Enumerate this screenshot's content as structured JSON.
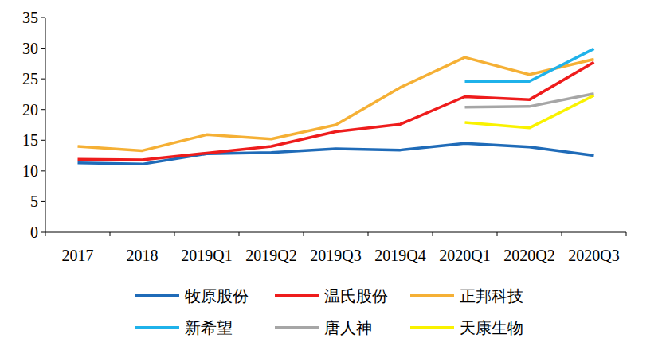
{
  "chart_data": {
    "type": "line",
    "categories": [
      "2017",
      "2018",
      "2019Q1",
      "2019Q2",
      "2019Q3",
      "2019Q4",
      "2020Q1",
      "2020Q2",
      "2020Q3"
    ],
    "series": [
      {
        "name": "牧原股份",
        "color": "#1f6bb8",
        "values": [
          11.3,
          11.1,
          12.8,
          13.0,
          13.6,
          13.4,
          14.5,
          13.9,
          12.5
        ]
      },
      {
        "name": "温氏股份",
        "color": "#ee1c1c",
        "values": [
          11.9,
          11.8,
          12.9,
          14.0,
          16.4,
          17.6,
          22.1,
          21.6,
          27.7
        ]
      },
      {
        "name": "正邦科技",
        "color": "#f5b035",
        "values": [
          14.0,
          13.3,
          15.9,
          15.2,
          17.5,
          23.6,
          28.5,
          25.7,
          28.2
        ]
      },
      {
        "name": "新希望",
        "color": "#1fb2ea",
        "values": [
          null,
          null,
          null,
          null,
          null,
          null,
          24.6,
          24.6,
          29.9
        ]
      },
      {
        "name": "唐人神",
        "color": "#a6a6a6",
        "values": [
          null,
          null,
          null,
          null,
          null,
          null,
          20.4,
          20.5,
          22.6
        ]
      },
      {
        "name": "天康生物",
        "color": "#f9f200",
        "values": [
          null,
          null,
          null,
          null,
          null,
          null,
          17.9,
          17.0,
          22.3
        ]
      }
    ],
    "ylim": [
      0,
      35
    ],
    "yticks": [
      0,
      5,
      10,
      15,
      20,
      25,
      30,
      35
    ],
    "grid": false,
    "legend": "bottom"
  }
}
